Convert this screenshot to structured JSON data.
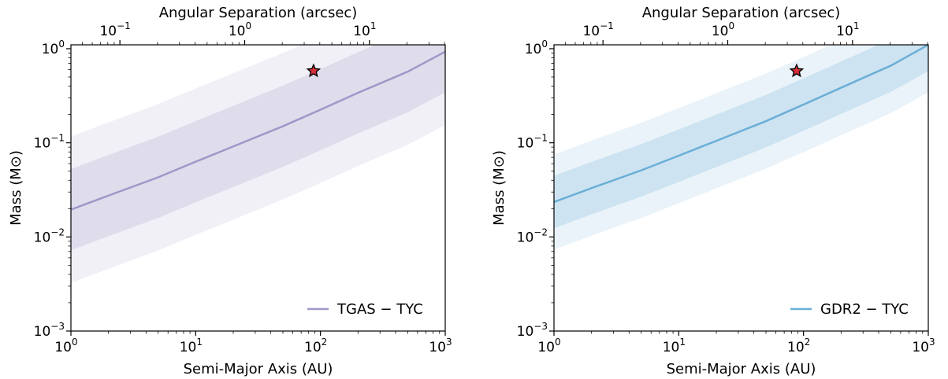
{
  "chart_data": [
    {
      "type": "line",
      "xlabel": "Semi-Major Axis (AU)",
      "ylabel": "Mass (M⊙)",
      "top_xlabel": "Angular Separation (arcsec)",
      "xscale": "log",
      "yscale": "log",
      "xlim": [
        1,
        1000
      ],
      "ylim": [
        0.001,
        1.1
      ],
      "top_xlim": [
        0.0405,
        40.5
      ],
      "x_ticks": [
        1,
        10,
        100,
        1000
      ],
      "x_tick_labels": [
        [
          "10",
          "0"
        ],
        [
          "10",
          "1"
        ],
        [
          "10",
          "2"
        ],
        [
          "10",
          "3"
        ]
      ],
      "y_ticks": [
        0.001,
        0.01,
        0.1,
        1
      ],
      "y_tick_labels": [
        [
          "10",
          "−3"
        ],
        [
          "10",
          "−2"
        ],
        [
          "10",
          "−1"
        ],
        [
          "10",
          "0"
        ]
      ],
      "top_ticks": [
        0.1,
        1,
        10
      ],
      "top_tick_labels": [
        [
          "10",
          "−1"
        ],
        [
          "10",
          "0"
        ],
        [
          "10",
          "1"
        ]
      ],
      "legend_position": "bottom-right",
      "grid": false,
      "series": [
        {
          "name": "TGAS − TYC",
          "color": "#9e98c8",
          "x": [
            1,
            2,
            5,
            10,
            20,
            50,
            100,
            200,
            500,
            1000
          ],
          "values": [
            0.0195,
            0.0275,
            0.043,
            0.063,
            0.0915,
            0.15,
            0.225,
            0.34,
            0.57,
            0.93
          ],
          "band_1sigma_factor": 2.7,
          "band_2sigma_factor": 6.0
        }
      ],
      "marker": {
        "shape": "star",
        "x": 88,
        "y": 0.58,
        "color": "#d8303a"
      }
    },
    {
      "type": "line",
      "xlabel": "Semi-Major Axis (AU)",
      "ylabel": "Mass (M⊙)",
      "top_xlabel": "Angular Separation (arcsec)",
      "xscale": "log",
      "yscale": "log",
      "xlim": [
        1,
        1000
      ],
      "ylim": [
        0.001,
        1.1
      ],
      "top_xlim": [
        0.0405,
        40.5
      ],
      "x_ticks": [
        1,
        10,
        100,
        1000
      ],
      "x_tick_labels": [
        [
          "10",
          "0"
        ],
        [
          "10",
          "1"
        ],
        [
          "10",
          "2"
        ],
        [
          "10",
          "3"
        ]
      ],
      "y_ticks": [
        0.001,
        0.01,
        0.1,
        1
      ],
      "y_tick_labels": [
        [
          "10",
          "−3"
        ],
        [
          "10",
          "−2"
        ],
        [
          "10",
          "−1"
        ],
        [
          "10",
          "0"
        ]
      ],
      "top_ticks": [
        0.1,
        1,
        10
      ],
      "top_tick_labels": [
        [
          "10",
          "−1"
        ],
        [
          "10",
          "0"
        ],
        [
          "10",
          "1"
        ]
      ],
      "legend_position": "bottom-right",
      "grid": false,
      "series": [
        {
          "name": "GDR2 − TYC",
          "color": "#6aaed6",
          "x": [
            1,
            2,
            5,
            10,
            20,
            50,
            100,
            200,
            500,
            1000
          ],
          "values": [
            0.0235,
            0.033,
            0.051,
            0.073,
            0.105,
            0.17,
            0.255,
            0.385,
            0.66,
            1.1
          ],
          "band_1sigma_factor": 1.9,
          "band_2sigma_factor": 3.2
        }
      ],
      "marker": {
        "shape": "star",
        "x": 88,
        "y": 0.58,
        "color": "#d8303a"
      }
    }
  ]
}
